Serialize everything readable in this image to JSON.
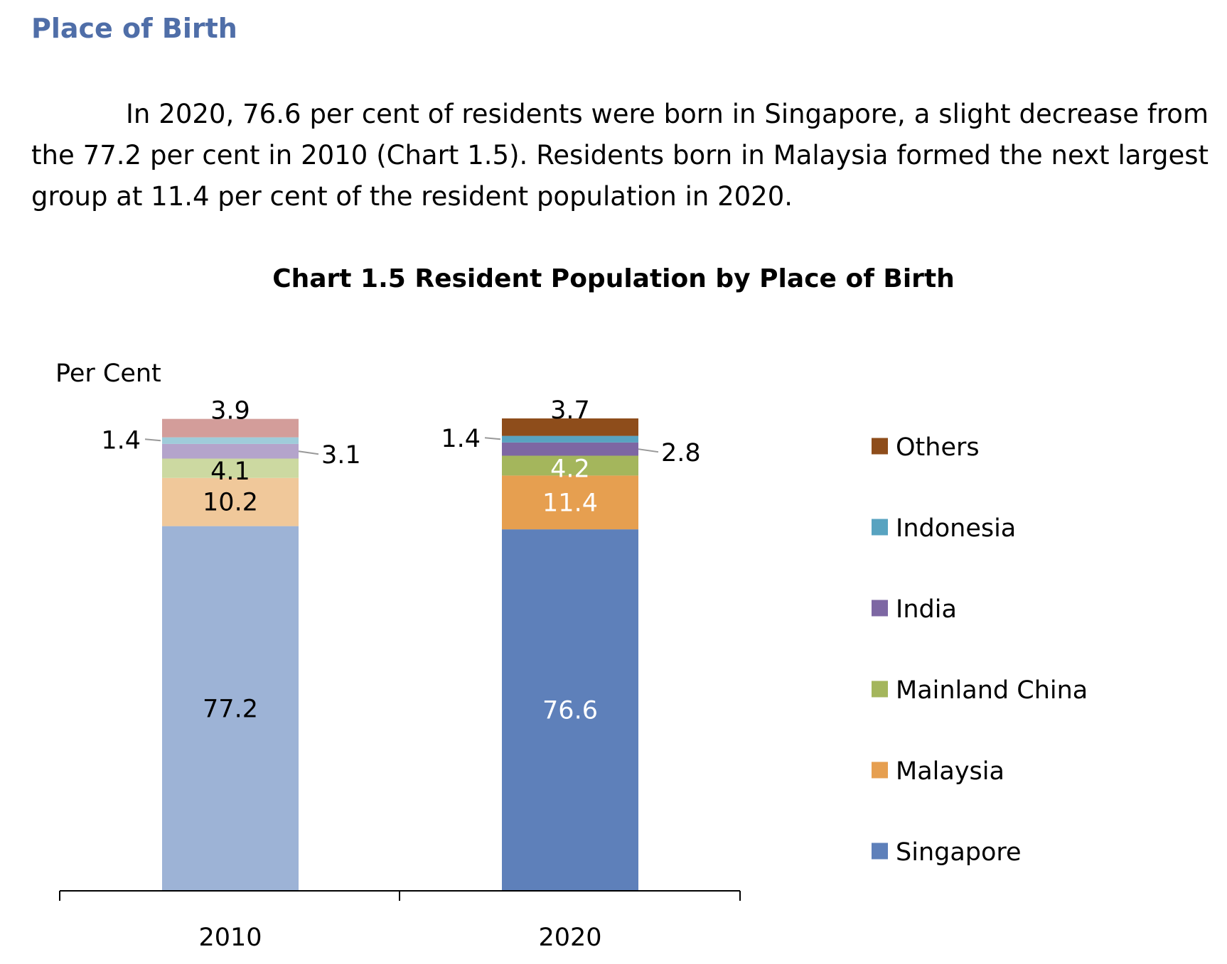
{
  "section": {
    "heading": "Place of Birth",
    "paragraph": "In 2020, 76.6 per cent of residents were born in Singapore, a slight decrease from the 77.2 per cent in 2010 (Chart 1.5). Residents born in Malaysia formed the next largest group at 11.4 per cent of the resident population in 2020."
  },
  "chart_data": {
    "type": "bar",
    "stacked": true,
    "title": "Chart 1.5  Resident Population by Place of Birth",
    "ylabel": "Per Cent",
    "xlabel": "",
    "ylim": [
      0,
      100
    ],
    "grid": false,
    "legend_position": "right",
    "categories": [
      "2010",
      "2020"
    ],
    "series": [
      {
        "name": "Singapore",
        "values": [
          77.2,
          76.6
        ],
        "colors": [
          "#9DB3D6",
          "#5E80BA"
        ],
        "label_colors": [
          "#000000",
          "#FFFFFF"
        ]
      },
      {
        "name": "Malaysia",
        "values": [
          10.2,
          11.4
        ],
        "colors": [
          "#F0C89A",
          "#E69F50"
        ],
        "label_colors": [
          "#000000",
          "#FFFFFF"
        ]
      },
      {
        "name": "Mainland China",
        "values": [
          4.1,
          4.2
        ],
        "colors": [
          "#CCD9A1",
          "#A4B65C"
        ],
        "label_colors": [
          "#000000",
          "#FFFFFF"
        ]
      },
      {
        "name": "India",
        "values": [
          3.1,
          2.8
        ],
        "colors": [
          "#B4A4CB",
          "#7D67A3"
        ],
        "label_colors": [
          "#000000",
          "#000000"
        ]
      },
      {
        "name": "Indonesia",
        "values": [
          1.4,
          1.4
        ],
        "colors": [
          "#9FCCDA",
          "#58A3C0"
        ],
        "label_colors": [
          "#000000",
          "#000000"
        ]
      },
      {
        "name": "Others",
        "values": [
          3.9,
          3.7
        ],
        "colors": [
          "#D39D9A",
          "#8E4D1B"
        ],
        "label_colors": [
          "#000000",
          "#000000"
        ]
      }
    ],
    "legend": [
      {
        "name": "Others",
        "color": "#8E4D1B"
      },
      {
        "name": "Indonesia",
        "color": "#58A3C0"
      },
      {
        "name": "India",
        "color": "#7D67A3"
      },
      {
        "name": "Mainland China",
        "color": "#A4B65C"
      },
      {
        "name": "Malaysia",
        "color": "#E69F50"
      },
      {
        "name": "Singapore",
        "color": "#5E80BA"
      }
    ]
  }
}
